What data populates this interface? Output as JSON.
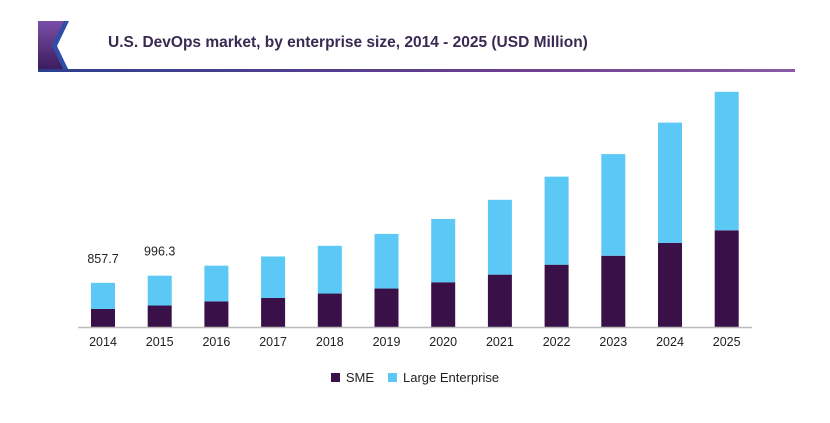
{
  "chart_data": {
    "type": "bar",
    "stacked": true,
    "title": "U.S. DevOps market, by enterprise size, 2014 - 2025 (USD Million)",
    "xlabel": "",
    "ylabel": "",
    "categories": [
      "2014",
      "2015",
      "2016",
      "2017",
      "2018",
      "2019",
      "2020",
      "2021",
      "2022",
      "2023",
      "2024",
      "2025"
    ],
    "series": [
      {
        "name": "SME",
        "color": "#3a1048",
        "values": [
          350,
          419,
          496,
          565,
          650,
          747,
          869,
          1017,
          1210,
          1384,
          1635,
          1878
        ]
      },
      {
        "name": "Large Enterprise",
        "color": "#5bc8f5",
        "values": [
          507.7,
          577.3,
          695,
          805,
          927,
          1061,
          1229,
          1453,
          1710,
          1974,
          2335,
          2690
        ]
      }
    ],
    "data_labels": [
      {
        "category": "2014",
        "text": "857.7"
      },
      {
        "category": "2015",
        "text": "996.3"
      }
    ],
    "ylim": [
      0,
      4700
    ],
    "grid": false,
    "y_axis_visible": false,
    "legend_position": "bottom"
  }
}
